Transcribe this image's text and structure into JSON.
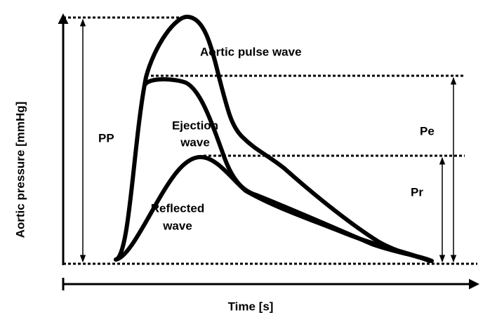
{
  "labels": {
    "aortic_pulse_wave": "Aortic pulse wave",
    "ejection_wave": [
      "Ejection",
      "wave"
    ],
    "reflected_wave": [
      "Reflected",
      "wave"
    ],
    "pp": "PP",
    "pe": "Pe",
    "pr": "Pr"
  },
  "axes": {
    "y_label": "Aortic pressure [mmHg]",
    "x_label": "Time [s]"
  }
}
